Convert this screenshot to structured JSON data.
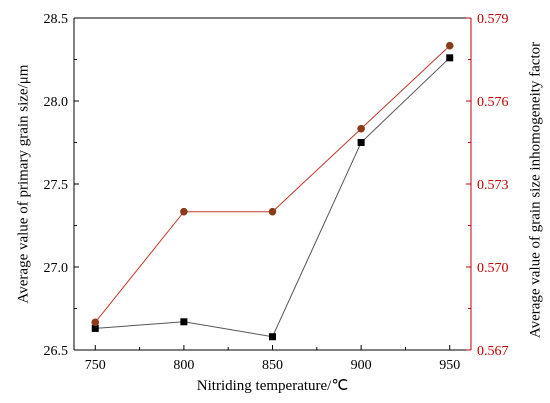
{
  "chart_data": {
    "type": "line",
    "xlabel": "Nitriding temperature/℃",
    "ylabel_left": "Average value of primary grain size/μm",
    "ylabel_right": "Average value of grain size inhomogeneity factor",
    "x": [
      750,
      800,
      850,
      900,
      950
    ],
    "x_ticks": [
      "750",
      "800",
      "850",
      "900",
      "950"
    ],
    "xlim": [
      738,
      962
    ],
    "ylim_left": [
      26.5,
      28.5
    ],
    "yticks_left": [
      "26.5",
      "27.0",
      "27.5",
      "28.0",
      "28.5"
    ],
    "ylim_right": [
      0.567,
      0.579
    ],
    "yticks_right": [
      "0.567",
      "0.570",
      "0.573",
      "0.576",
      "0.579"
    ],
    "series": [
      {
        "axis": "left",
        "marker": "square",
        "color": "#000000",
        "line_color": "#555555",
        "values": [
          26.63,
          26.67,
          26.58,
          27.75,
          28.26
        ]
      },
      {
        "axis": "right",
        "marker": "circle",
        "color": "#8b3a1a",
        "line_color": "#c0392b",
        "values": [
          0.568,
          0.572,
          0.572,
          0.575,
          0.578
        ]
      }
    ],
    "right_axis_color": "#c00000",
    "grid": false,
    "legend": "none"
  }
}
